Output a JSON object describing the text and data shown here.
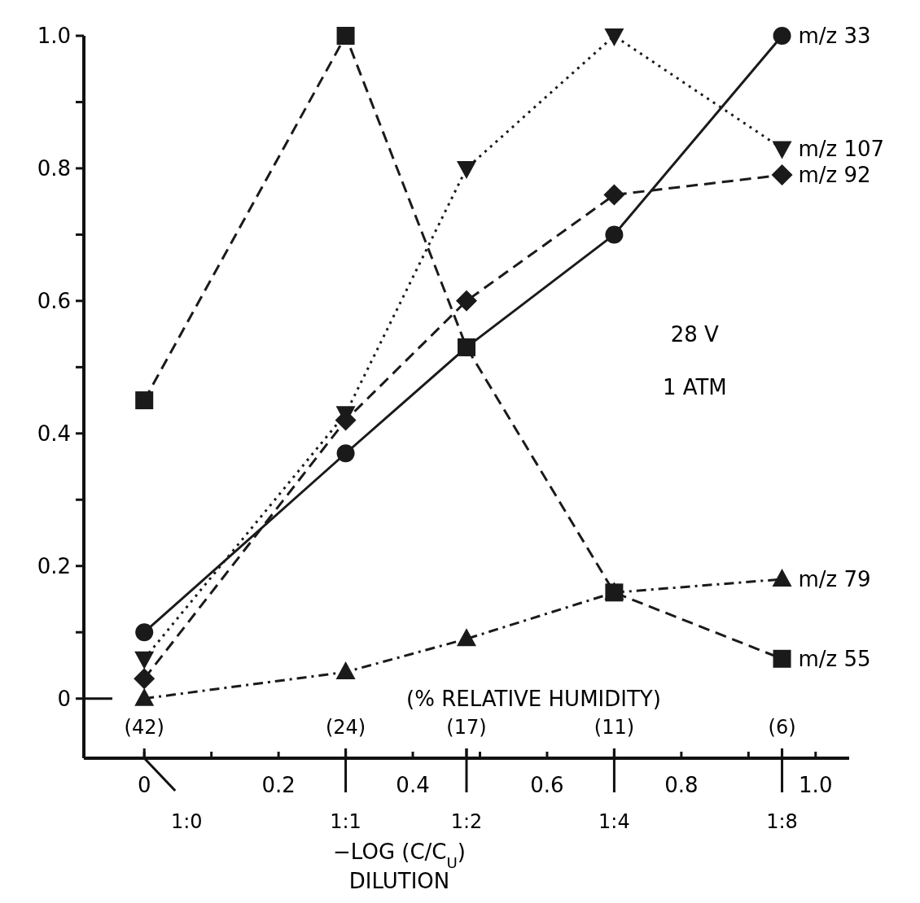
{
  "chart_data": {
    "type": "line",
    "x": [
      0,
      0.3,
      0.48,
      0.7,
      0.95
    ],
    "series": [
      {
        "name": "m/z 33",
        "color": "#1a1a1a",
        "marker": "circle",
        "line_style": "solid",
        "values": [
          0.1,
          0.37,
          0.53,
          0.7,
          1.0
        ]
      },
      {
        "name": "m/z 107",
        "color": "#1a1a1a",
        "marker": "triangle_down",
        "line_style": "dotted",
        "values": [
          0.06,
          0.43,
          0.8,
          1.0,
          0.83
        ]
      },
      {
        "name": "m/z 92",
        "color": "#1a1a1a",
        "marker": "diamond",
        "line_style": "dashed",
        "values": [
          0.03,
          0.42,
          0.6,
          0.76,
          0.79
        ]
      },
      {
        "name": "m/z 79",
        "color": "#1a1a1a",
        "marker": "triangle",
        "line_style": "dashdot",
        "values": [
          0,
          0.04,
          0.09,
          0.16,
          0.18
        ]
      },
      {
        "name": "m/z 55",
        "color": "#1a1a1a",
        "marker": "square",
        "line_style": "dashed",
        "values": [
          0.45,
          1.0,
          0.53,
          0.16,
          0.06
        ]
      }
    ],
    "xlim": [
      -0.09,
      1.05
    ],
    "ylim": [
      -0.09,
      1.0
    ],
    "xticks": [
      0,
      {
        "value": 0.1,
        "label": null
      },
      0.2,
      {
        "value": 0.3,
        "label": null
      },
      0.4,
      {
        "value": 0.5,
        "label": null
      },
      0.6,
      {
        "value": 0.7,
        "label": null
      },
      0.8,
      {
        "value": 0.9,
        "label": null
      },
      {
        "value": 1,
        "label": "1.0"
      }
    ],
    "yticks": [
      0,
      {
        "value": 0.1,
        "label": null
      },
      0.2,
      {
        "value": 0.3,
        "label": null
      },
      0.4,
      {
        "value": 0.5,
        "label": null
      },
      0.6,
      {
        "value": 0.7,
        "label": null
      },
      0.8,
      {
        "value": 0.9,
        "label": null
      },
      {
        "value": 1,
        "label": "1.0"
      }
    ],
    "xlabel": "−LOG (C/C$_{U}$)\nDILUTION",
    "annotations": [
      "28 V",
      "1 ATM",
      "(% RELATIVE HUMIDITY)",
      "(42)",
      "(24)",
      "(17)",
      "(11)",
      "(6)",
      "1:0",
      "1:1",
      "1:2",
      "1:4",
      "1:8"
    ],
    "grid": false
  }
}
